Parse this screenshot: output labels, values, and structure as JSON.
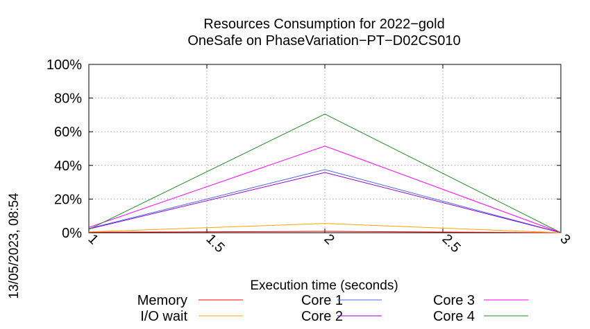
{
  "chart_data": {
    "type": "line",
    "title": "Resources Consumption for 2022−gold",
    "subtitle": "OneSafe on PhaseVariation−PT−D02CS010",
    "xlabel": "Execution time (seconds)",
    "side_label": "13/05/2023, 08:54",
    "xlim": [
      1,
      3
    ],
    "ylim": [
      0,
      100
    ],
    "x_ticks": [
      {
        "value": 1,
        "label": "1"
      },
      {
        "value": 1.5,
        "label": "1.5"
      },
      {
        "value": 2,
        "label": "2"
      },
      {
        "value": 2.5,
        "label": "2.5"
      },
      {
        "value": 3,
        "label": "3"
      }
    ],
    "y_ticks": [
      {
        "value": 0,
        "label": "0%"
      },
      {
        "value": 20,
        "label": "20%"
      },
      {
        "value": 40,
        "label": "40%"
      },
      {
        "value": 60,
        "label": "60%"
      },
      {
        "value": 80,
        "label": "80%"
      },
      {
        "value": 100,
        "label": "100%"
      }
    ],
    "grid": true,
    "legend_position": "bottom",
    "series": [
      {
        "name": "Memory",
        "color": "#ff0000",
        "points": [
          [
            1,
            0.3
          ],
          [
            2,
            0.8
          ],
          [
            3,
            0
          ]
        ]
      },
      {
        "name": "I/O wait",
        "color": "#ffa500",
        "points": [
          [
            1,
            0.5
          ],
          [
            2,
            5.5
          ],
          [
            3,
            0
          ]
        ]
      },
      {
        "name": "Core 1",
        "color": "#4169e1",
        "points": [
          [
            1,
            2.5
          ],
          [
            2,
            37.5
          ],
          [
            3,
            0
          ]
        ]
      },
      {
        "name": "Core 2",
        "color": "#9400d3",
        "points": [
          [
            1,
            2.2
          ],
          [
            2,
            35.8
          ],
          [
            3,
            0
          ]
        ]
      },
      {
        "name": "Core 3",
        "color": "#ff00ff",
        "points": [
          [
            1,
            3.2
          ],
          [
            2,
            51.5
          ],
          [
            3,
            0
          ]
        ]
      },
      {
        "name": "Core 4",
        "color": "#228b22",
        "points": [
          [
            1,
            2.0
          ],
          [
            2,
            70.5
          ],
          [
            3,
            0
          ]
        ]
      }
    ]
  }
}
